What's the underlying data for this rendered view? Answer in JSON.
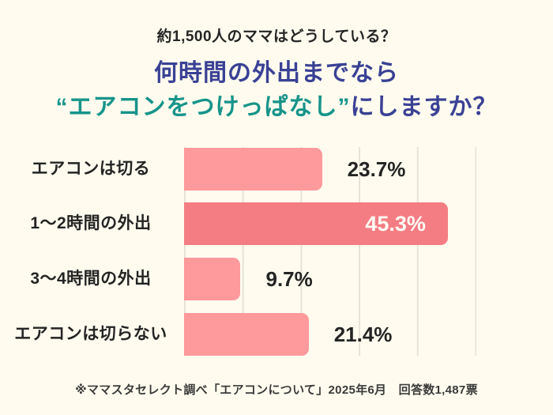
{
  "page": {
    "background": "#fffcef"
  },
  "colors": {
    "bg": "#fffcef",
    "title-navy": "#3a4195",
    "title-teal": "#17948a",
    "bar-pink": "#fe999c",
    "bar-highlight": "#f47d84",
    "grid-line": "#e6e3d8",
    "text-dark": "#242424",
    "value-on-bar": "#fffdf4"
  },
  "header": {
    "subtitle": "約1,500人のママはどうしている？",
    "title_line1": "何時間の外出までなら",
    "title_line2_highlight": "“エアコンをつけっぱなし”",
    "title_line2_rest": "にしますか？"
  },
  "chart_data": {
    "type": "bar",
    "orientation": "horizontal",
    "title": "何時間の外出までなら“エアコンをつけっぱなし”にしますか？",
    "categories": [
      "エアコンは切る",
      "1〜2時間の外出",
      "3〜4時間の外出",
      "エアコンは切らない"
    ],
    "values": [
      23.7,
      45.3,
      9.7,
      21.4
    ],
    "value_labels": [
      "23.7%",
      "45.3%",
      "9.7%",
      "21.4%"
    ],
    "highlight_index": 1,
    "unit": "%",
    "xlim": [
      0,
      50
    ],
    "gridline_step_percent": 10,
    "grid": true,
    "legend": false
  },
  "footer": {
    "source_note": "※ママスタセレクト調べ「エアコンについて」2025年6月　回答数1,487票"
  }
}
